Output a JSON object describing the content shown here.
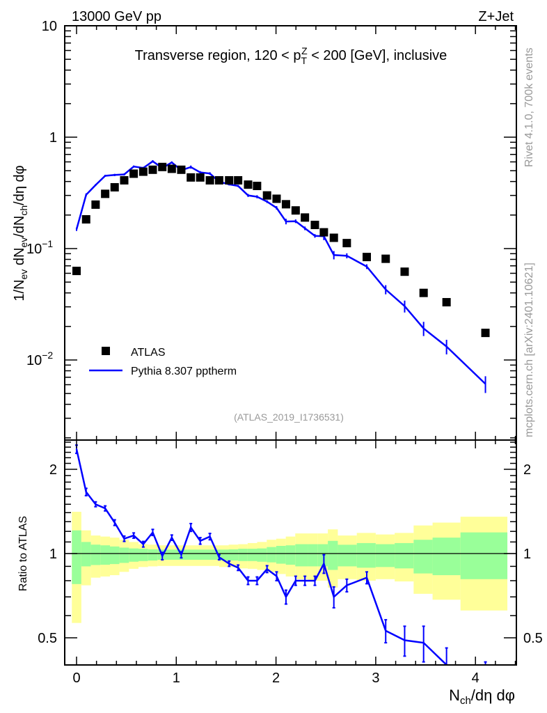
{
  "header": {
    "energy_label": "13000 GeV pp",
    "process_label": "Z+Jet",
    "plot_title": "Transverse region, 120 < p",
    "plot_title_sub": "T",
    "plot_title_sup": "Z",
    "plot_title_rest": " < 200 [GeV], inclusive"
  },
  "side": {
    "rivet_label": "Rivet 4.1.0,  700k events",
    "mcplots_label": "mcplots.cern.ch [arXiv:2401.10621]"
  },
  "analysis_label": "(ATLAS_2019_I1736531)",
  "colors": {
    "data": "#000000",
    "mc": "#0000ff",
    "band_green": "#99ff99",
    "band_yellow": "#ffff99"
  },
  "chart_data": [
    {
      "type": "scatter",
      "panel": "main",
      "ylabel": "1/N_ev dN_ev/dN_ch/dη dφ",
      "ylabel_parts": [
        "1/N",
        "ev",
        " dN",
        "ev",
        "/dN",
        "ch",
        "/dη dφ"
      ],
      "xlabel": "N_ch/dη dφ",
      "xlabel_parts": [
        "N",
        "ch",
        "/dη dφ"
      ],
      "yscale": "log",
      "ylim": [
        0.0019,
        10
      ],
      "xlim": [
        -0.12,
        4.41
      ],
      "ytick_labels": [
        {
          "v": 10,
          "t": "10"
        },
        {
          "v": 1,
          "t": "1"
        },
        {
          "v": 0.1,
          "t": "10",
          "sup": "−1"
        },
        {
          "v": 0.01,
          "t": "10",
          "sup": "−2"
        }
      ],
      "legend": {
        "placement": "lower-left",
        "entries": [
          "ATLAS",
          "Pythia 8.307 pptherm"
        ]
      },
      "x": [
        0,
        0.096,
        0.191,
        0.287,
        0.382,
        0.478,
        0.573,
        0.669,
        0.764,
        0.86,
        0.955,
        1.05,
        1.146,
        1.24,
        1.337,
        1.43,
        1.53,
        1.62,
        1.72,
        1.81,
        1.91,
        2.006,
        2.1,
        2.197,
        2.29,
        2.39,
        2.48,
        2.58,
        2.71,
        2.91,
        3.1,
        3.29,
        3.48,
        3.71,
        4.1
      ],
      "series": [
        {
          "name": "ATLAS",
          "values": [
            0.063,
            0.183,
            0.248,
            0.31,
            0.355,
            0.41,
            0.47,
            0.49,
            0.51,
            0.54,
            0.52,
            0.51,
            0.435,
            0.435,
            0.41,
            0.41,
            0.41,
            0.41,
            0.375,
            0.365,
            0.3,
            0.28,
            0.25,
            0.22,
            0.19,
            0.163,
            0.14,
            0.125,
            0.112,
            0.084,
            0.081,
            0.062,
            0.04,
            0.033,
            0.0175
          ]
        },
        {
          "name": "Pythia 8.307 pptherm",
          "values": [
            0.149,
            0.304,
            0.372,
            0.45,
            0.458,
            0.463,
            0.545,
            0.529,
            0.607,
            0.529,
            0.593,
            0.505,
            0.539,
            0.483,
            0.472,
            0.398,
            0.377,
            0.365,
            0.3,
            0.292,
            0.264,
            0.232,
            0.175,
            0.176,
            0.152,
            0.13,
            0.129,
            0.0875,
            0.0862,
            0.0689,
            0.0429,
            0.0304,
            0.0192,
            0.0132,
            0.0061
          ]
        }
      ]
    },
    {
      "type": "line",
      "panel": "ratio",
      "ylabel": "Ratio to ATLAS",
      "yscale": "log",
      "ylim": [
        0.4,
        2.54
      ],
      "ytick_labels": [
        {
          "v": 2,
          "t": "2"
        },
        {
          "v": 1,
          "t": "1"
        },
        {
          "v": 0.5,
          "t": "0.5"
        }
      ],
      "xtick_labels": [
        "0",
        "1",
        "2",
        "3",
        "4"
      ],
      "x": [
        0,
        0.096,
        0.191,
        0.287,
        0.382,
        0.478,
        0.573,
        0.669,
        0.764,
        0.86,
        0.955,
        1.05,
        1.146,
        1.24,
        1.337,
        1.43,
        1.53,
        1.62,
        1.72,
        1.81,
        1.91,
        2.006,
        2.1,
        2.197,
        2.29,
        2.39,
        2.48,
        2.58,
        2.71,
        2.91,
        3.1,
        3.29,
        3.48,
        3.71,
        4.1
      ],
      "ratio": [
        2.36,
        1.66,
        1.5,
        1.45,
        1.29,
        1.13,
        1.16,
        1.08,
        1.19,
        0.98,
        1.14,
        0.99,
        1.24,
        1.11,
        1.15,
        0.97,
        0.92,
        0.89,
        0.8,
        0.8,
        0.88,
        0.83,
        0.7,
        0.8,
        0.8,
        0.8,
        0.92,
        0.7,
        0.77,
        0.82,
        0.53,
        0.49,
        0.48,
        0.4,
        0.35
      ],
      "ratio_err": [
        0.08,
        0.05,
        0.03,
        0.03,
        0.03,
        0.025,
        0.025,
        0.025,
        0.03,
        0.03,
        0.025,
        0.025,
        0.04,
        0.03,
        0.03,
        0.02,
        0.02,
        0.02,
        0.025,
        0.025,
        0.025,
        0.03,
        0.04,
        0.03,
        0.03,
        0.03,
        0.07,
        0.06,
        0.04,
        0.04,
        0.05,
        0.06,
        0.07,
        0.06,
        0.06
      ],
      "bands": [
        {
          "x0": -0.047,
          "x1": 0.048,
          "green": [
            0.778,
            1.21
          ],
          "yellow": [
            0.565,
            1.41
          ]
        },
        {
          "x0": 0.048,
          "x1": 0.144,
          "green": [
            0.9,
            1.1
          ],
          "yellow": [
            0.77,
            1.21
          ]
        },
        {
          "x0": 0.144,
          "x1": 0.24,
          "green": [
            0.91,
            1.076
          ],
          "yellow": [
            0.82,
            1.16
          ]
        },
        {
          "x0": 0.24,
          "x1": 0.335,
          "green": [
            0.912,
            1.07
          ],
          "yellow": [
            0.828,
            1.15
          ]
        },
        {
          "x0": 0.335,
          "x1": 0.43,
          "green": [
            0.917,
            1.06
          ],
          "yellow": [
            0.837,
            1.14
          ]
        },
        {
          "x0": 0.43,
          "x1": 0.526,
          "green": [
            0.926,
            1.05
          ],
          "yellow": [
            0.86,
            1.12
          ]
        },
        {
          "x0": 0.526,
          "x1": 0.621,
          "green": [
            0.935,
            1.043
          ],
          "yellow": [
            0.882,
            1.1
          ]
        },
        {
          "x0": 0.621,
          "x1": 0.717,
          "green": [
            0.94,
            1.04
          ],
          "yellow": [
            0.895,
            1.08
          ]
        },
        {
          "x0": 0.717,
          "x1": 0.812,
          "green": [
            0.944,
            1.035
          ],
          "yellow": [
            0.9,
            1.076
          ]
        },
        {
          "x0": 0.812,
          "x1": 1.43,
          "green": [
            0.95,
            1.033
          ],
          "yellow": [
            0.903,
            1.07
          ]
        },
        {
          "x0": 1.43,
          "x1": 1.525,
          "green": [
            0.944,
            1.033
          ],
          "yellow": [
            0.895,
            1.07
          ]
        },
        {
          "x0": 1.525,
          "x1": 1.62,
          "green": [
            0.944,
            1.035
          ],
          "yellow": [
            0.895,
            1.076
          ]
        },
        {
          "x0": 1.62,
          "x1": 1.716,
          "green": [
            0.94,
            1.04
          ],
          "yellow": [
            0.885,
            1.08
          ]
        },
        {
          "x0": 1.716,
          "x1": 1.811,
          "green": [
            0.94,
            1.04
          ],
          "yellow": [
            0.882,
            1.09
          ]
        },
        {
          "x0": 1.811,
          "x1": 1.907,
          "green": [
            0.935,
            1.043
          ],
          "yellow": [
            0.874,
            1.1
          ]
        },
        {
          "x0": 1.907,
          "x1": 2.002,
          "green": [
            0.93,
            1.055
          ],
          "yellow": [
            0.86,
            1.12
          ]
        },
        {
          "x0": 2.002,
          "x1": 2.098,
          "green": [
            0.92,
            1.065
          ],
          "yellow": [
            0.845,
            1.13
          ]
        },
        {
          "x0": 2.098,
          "x1": 2.193,
          "green": [
            0.912,
            1.07
          ],
          "yellow": [
            0.828,
            1.15
          ]
        },
        {
          "x0": 2.193,
          "x1": 2.32,
          "green": [
            0.9,
            1.08
          ],
          "yellow": [
            0.81,
            1.18
          ]
        },
        {
          "x0": 2.32,
          "x1": 2.42,
          "green": [
            0.9,
            1.08
          ],
          "yellow": [
            0.8,
            1.18
          ]
        },
        {
          "x0": 2.42,
          "x1": 2.52,
          "green": [
            0.9,
            1.08
          ],
          "yellow": [
            0.8,
            1.18
          ]
        },
        {
          "x0": 2.52,
          "x1": 2.62,
          "green": [
            0.874,
            1.11
          ],
          "yellow": [
            0.756,
            1.22
          ]
        },
        {
          "x0": 2.62,
          "x1": 2.81,
          "green": [
            0.9,
            1.075
          ],
          "yellow": [
            0.81,
            1.16
          ]
        },
        {
          "x0": 2.81,
          "x1": 3.0,
          "green": [
            0.89,
            1.09
          ],
          "yellow": [
            0.8,
            1.185
          ]
        },
        {
          "x0": 3.0,
          "x1": 3.19,
          "green": [
            0.895,
            1.08
          ],
          "yellow": [
            0.81,
            1.17
          ]
        },
        {
          "x0": 3.19,
          "x1": 3.38,
          "green": [
            0.885,
            1.09
          ],
          "yellow": [
            0.795,
            1.185
          ]
        },
        {
          "x0": 3.38,
          "x1": 3.57,
          "green": [
            0.849,
            1.12
          ],
          "yellow": [
            0.718,
            1.26
          ]
        },
        {
          "x0": 3.57,
          "x1": 3.85,
          "green": [
            0.837,
            1.14
          ],
          "yellow": [
            0.684,
            1.29
          ]
        },
        {
          "x0": 3.85,
          "x1": 4.32,
          "green": [
            0.81,
            1.19
          ],
          "yellow": [
            0.626,
            1.354
          ]
        }
      ]
    }
  ]
}
